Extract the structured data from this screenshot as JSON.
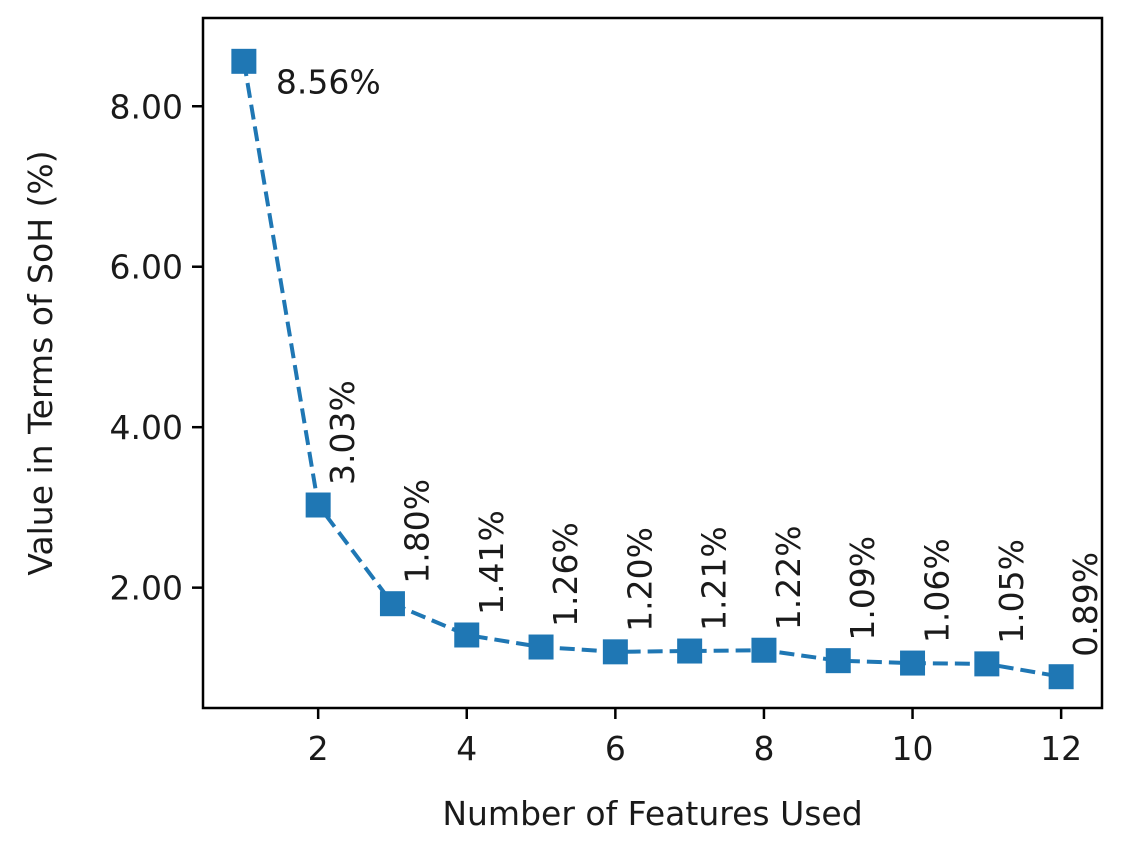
{
  "chart_data": {
    "type": "line",
    "x": [
      1,
      2,
      3,
      4,
      5,
      6,
      7,
      8,
      9,
      10,
      11,
      12
    ],
    "series": [
      {
        "values": [
          8.56,
          3.03,
          1.8,
          1.41,
          1.26,
          1.2,
          1.21,
          1.22,
          1.09,
          1.06,
          1.05,
          0.89
        ],
        "labels": [
          "8.56%",
          "3.03%",
          "1.80%",
          "1.41%",
          "1.26%",
          "1.20%",
          "1.21%",
          "1.22%",
          "1.09%",
          "1.06%",
          "1.05%",
          "0.89%"
        ],
        "color": "#1f77b4",
        "marker": "square",
        "line_style": "dashed"
      }
    ],
    "xlabel": "Number of Features Used",
    "ylabel": "Value in Terms of SoH (%)",
    "xticks": [
      2,
      4,
      6,
      8,
      10,
      12
    ],
    "xtick_labels": [
      "2",
      "4",
      "6",
      "8",
      "10",
      "12"
    ],
    "yticks": [
      2,
      4,
      6,
      8
    ],
    "ytick_labels": [
      "2.00",
      "4.00",
      "6.00",
      "8.00"
    ],
    "xlim": [
      0.45,
      12.55
    ],
    "ylim": [
      0.5,
      9.1
    ],
    "grid": false,
    "legend": "none"
  }
}
